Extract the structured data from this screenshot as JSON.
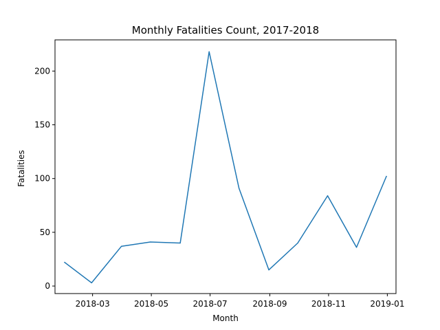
{
  "chart_data": {
    "type": "line",
    "title": "Monthly Fatalities Count, 2017-2018",
    "xlabel": "Month",
    "ylabel": "Fatalities",
    "x": [
      "2018-01-31",
      "2018-02-28",
      "2018-03-31",
      "2018-04-30",
      "2018-05-31",
      "2018-06-30",
      "2018-07-31",
      "2018-08-31",
      "2018-09-30",
      "2018-10-31",
      "2018-11-30",
      "2018-12-31"
    ],
    "series": [
      {
        "values": [
          22,
          3,
          37,
          41,
          40,
          218,
          91,
          15,
          40,
          84,
          36,
          102
        ]
      }
    ],
    "xticks": [
      "2018-03",
      "2018-05",
      "2018-07",
      "2018-09",
      "2018-11",
      "2019-01"
    ],
    "yticks": [
      0,
      50,
      100,
      150,
      200
    ],
    "xlim": [
      "2018-01-21",
      "2019-01-10"
    ],
    "ylim": [
      -7,
      229
    ],
    "grid": false,
    "colors": {
      "line": "#1f77b4",
      "axes": "#000000"
    }
  }
}
